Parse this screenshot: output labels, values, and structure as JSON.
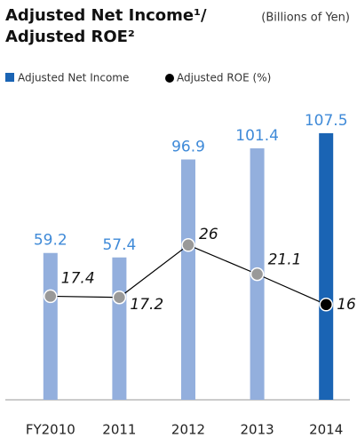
{
  "chart_data": {
    "type": "bar_line",
    "title_lines": [
      "Adjusted Net Income¹/",
      "Adjusted ROE²"
    ],
    "subtitle": "(Billions of Yen)",
    "categories": [
      "FY2010",
      "2011",
      "2012",
      "2013",
      "2014"
    ],
    "series": [
      {
        "name": "Adjusted Net Income",
        "type": "bar",
        "color": "#1a64b4",
        "colors": [
          "#93afdd",
          "#93afdd",
          "#93afdd",
          "#93afdd",
          "#1a64b4"
        ],
        "label_color": "#3f8ad8",
        "values": [
          59.2,
          57.4,
          96.9,
          101.4,
          107.5
        ]
      },
      {
        "name": "Adjusted ROE (%)",
        "type": "line",
        "axis": "y2",
        "color": "#000000",
        "colors": [
          "#999999",
          "#999999",
          "#999999",
          "#999999",
          "#000000"
        ],
        "values": [
          17.4,
          17.2,
          26.0,
          21.1,
          16
        ]
      }
    ],
    "ylim": [
      0,
      120
    ],
    "y2lim": [
      0,
      50
    ]
  }
}
